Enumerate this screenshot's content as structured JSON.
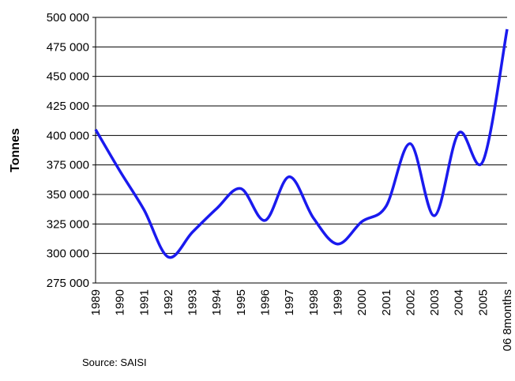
{
  "chart_data": {
    "type": "line",
    "y_label": "Tonnes",
    "source": "Source: SAISI",
    "categories": [
      "1989",
      "1990",
      "1991",
      "1992",
      "1993",
      "1994",
      "1995",
      "1996",
      "1997",
      "1998",
      "1999",
      "2000",
      "2001",
      "2002",
      "2003",
      "2004",
      "2005",
      "06 8months"
    ],
    "series": [
      {
        "name": "Tonnes",
        "color": "#1a1aee",
        "values": [
          405000,
          370000,
          337000,
          297000,
          318000,
          338000,
          355000,
          328000,
          365000,
          330000,
          308000,
          327000,
          340000,
          393000,
          332000,
          402000,
          378000,
          490000
        ]
      }
    ],
    "ylim": [
      275000,
      500000
    ],
    "yticks": [
      {
        "value": 275000,
        "label": "275 000"
      },
      {
        "value": 300000,
        "label": "300 000"
      },
      {
        "value": 325000,
        "label": "325 000"
      },
      {
        "value": 350000,
        "label": "350 000"
      },
      {
        "value": 375000,
        "label": "375 000"
      },
      {
        "value": 400000,
        "label": "400 000"
      },
      {
        "value": 425000,
        "label": "425 000"
      },
      {
        "value": 450000,
        "label": "450 000"
      },
      {
        "value": 475000,
        "label": "475 000"
      },
      {
        "value": 500000,
        "label": "500 000"
      }
    ],
    "grid": true
  }
}
